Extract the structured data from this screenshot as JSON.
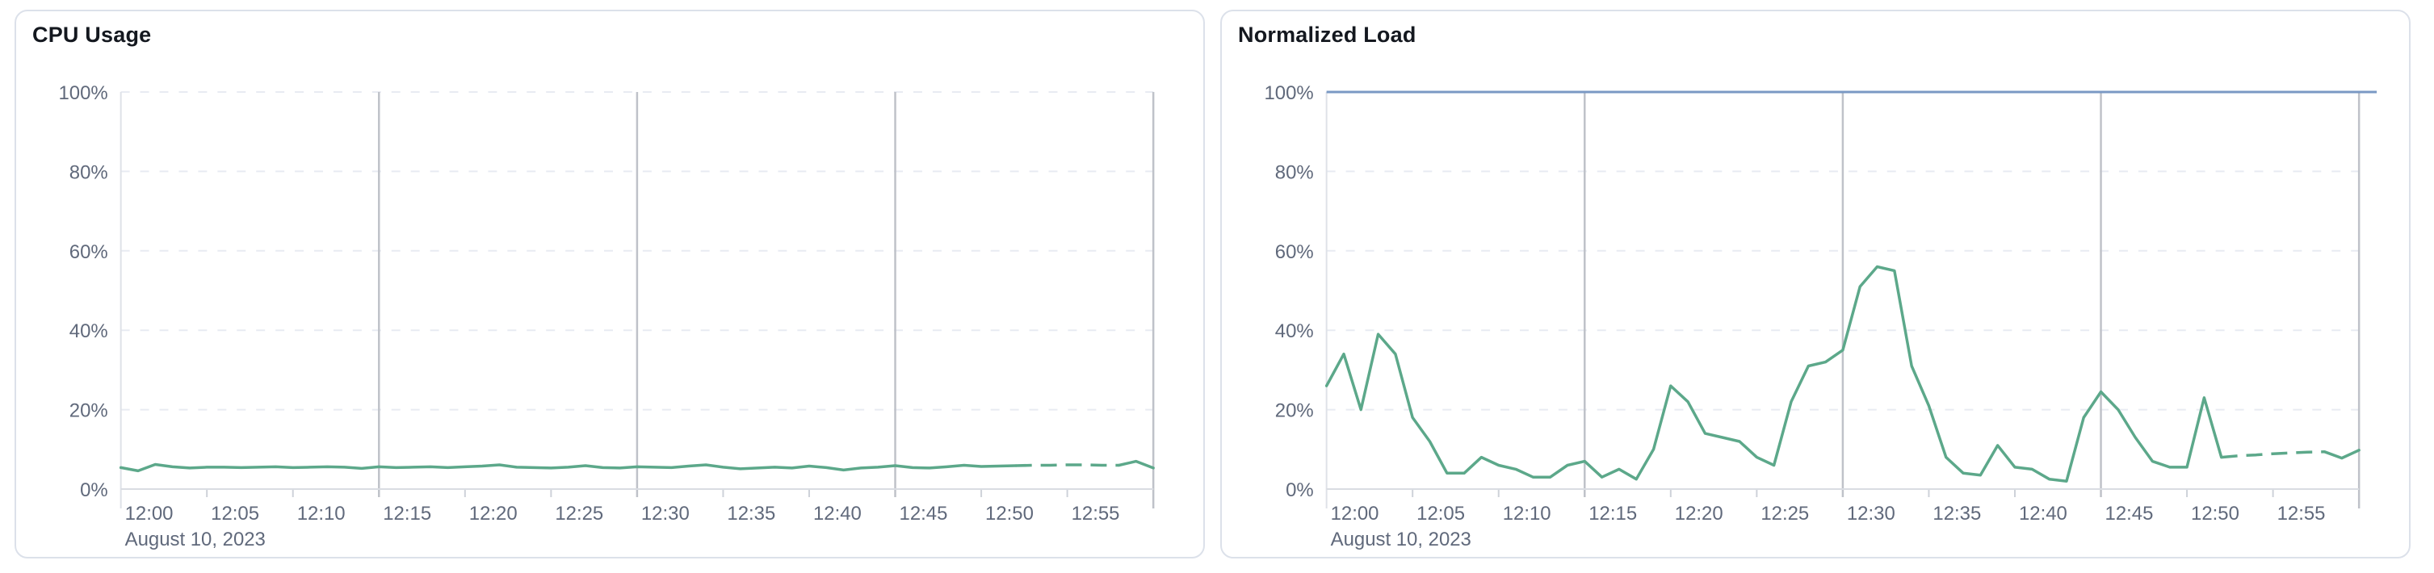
{
  "page": {
    "background": "#ffffff",
    "card_border": "#dce1ea",
    "card_background": "#ffffff"
  },
  "cards": [
    {
      "title": "CPU Usage"
    },
    {
      "title": "Normalized Load"
    }
  ],
  "chart_data": [
    {
      "type": "line",
      "title": "CPU Usage",
      "xlabel": "",
      "ylabel": "",
      "date_label": "August 10, 2023",
      "x_ticks": [
        "12:00",
        "12:05",
        "12:10",
        "12:15",
        "12:20",
        "12:25",
        "12:30",
        "12:35",
        "12:40",
        "12:45",
        "12:50",
        "12:55"
      ],
      "x_tick_step_min": 5,
      "x_range_min": [
        0,
        60
      ],
      "y_ticks": [
        "0%",
        "20%",
        "40%",
        "60%",
        "80%",
        "100%"
      ],
      "ylim": [
        0,
        100
      ],
      "grid": {
        "horizontal": "dashed",
        "vertical_dark_every_min": 15,
        "legend": "none"
      },
      "colors": {
        "line": "#5CA88A",
        "dark_grid": "#bfc2c9",
        "light_grid": "#e8ebf2",
        "axis": "#d9dce2",
        "tick": "#ced2d9",
        "label": "#60697b"
      },
      "series": [
        {
          "name": "cpu_usage_pct",
          "color": "#5CA88A",
          "dash_from_min": 52,
          "dash_to_min": 58,
          "points_min_pct": [
            [
              0,
              5.4
            ],
            [
              1,
              4.6
            ],
            [
              2,
              6.2
            ],
            [
              3,
              5.6
            ],
            [
              4,
              5.3
            ],
            [
              5,
              5.5
            ],
            [
              6,
              5.5
            ],
            [
              7,
              5.4
            ],
            [
              8,
              5.5
            ],
            [
              9,
              5.6
            ],
            [
              10,
              5.4
            ],
            [
              11,
              5.5
            ],
            [
              12,
              5.6
            ],
            [
              13,
              5.5
            ],
            [
              14,
              5.2
            ],
            [
              15,
              5.6
            ],
            [
              16,
              5.4
            ],
            [
              17,
              5.5
            ],
            [
              18,
              5.6
            ],
            [
              19,
              5.4
            ],
            [
              20,
              5.6
            ],
            [
              21,
              5.8
            ],
            [
              22,
              6.1
            ],
            [
              23,
              5.5
            ],
            [
              24,
              5.4
            ],
            [
              25,
              5.3
            ],
            [
              26,
              5.5
            ],
            [
              27,
              5.9
            ],
            [
              28,
              5.4
            ],
            [
              29,
              5.3
            ],
            [
              30,
              5.6
            ],
            [
              31,
              5.5
            ],
            [
              32,
              5.4
            ],
            [
              33,
              5.8
            ],
            [
              34,
              6.1
            ],
            [
              35,
              5.5
            ],
            [
              36,
              5.1
            ],
            [
              37,
              5.3
            ],
            [
              38,
              5.5
            ],
            [
              39,
              5.3
            ],
            [
              40,
              5.8
            ],
            [
              41,
              5.4
            ],
            [
              42,
              4.8
            ],
            [
              43,
              5.3
            ],
            [
              44,
              5.5
            ],
            [
              45,
              5.9
            ],
            [
              46,
              5.4
            ],
            [
              47,
              5.3
            ],
            [
              48,
              5.6
            ],
            [
              49,
              6.0
            ],
            [
              50,
              5.7
            ],
            [
              51,
              5.8
            ],
            [
              52,
              5.9
            ],
            [
              53,
              6.0
            ],
            [
              54,
              6.0
            ],
            [
              55,
              6.1
            ],
            [
              56,
              6.1
            ],
            [
              57,
              6.0
            ],
            [
              58,
              6.0
            ],
            [
              59,
              7.0
            ],
            [
              60,
              5.3
            ]
          ]
        }
      ]
    },
    {
      "type": "line",
      "title": "Normalized Load",
      "xlabel": "",
      "ylabel": "",
      "date_label": "August 10, 2023",
      "x_ticks": [
        "12:00",
        "12:05",
        "12:10",
        "12:15",
        "12:20",
        "12:25",
        "12:30",
        "12:35",
        "12:40",
        "12:45",
        "12:50",
        "12:55"
      ],
      "x_tick_step_min": 5,
      "x_range_min": [
        0,
        60
      ],
      "y_ticks": [
        "0%",
        "20%",
        "40%",
        "60%",
        "80%",
        "100%"
      ],
      "ylim": [
        0,
        100
      ],
      "grid": {
        "horizontal": "dashed",
        "vertical_dark_every_min": 15,
        "legend": "none"
      },
      "colors": {
        "line": "#5CA88A",
        "limit_line": "#7A99C4",
        "dark_grid": "#bfc2c9",
        "light_grid": "#e8ebf2",
        "axis": "#d9dce2",
        "tick": "#ced2d9",
        "label": "#60697b"
      },
      "series": [
        {
          "name": "normalized_load_pct",
          "color": "#5CA88A",
          "dash_from_min": 52,
          "dash_to_min": 58,
          "points_min_pct": [
            [
              0,
              26
            ],
            [
              1,
              34
            ],
            [
              2,
              20
            ],
            [
              3,
              39
            ],
            [
              4,
              34
            ],
            [
              5,
              18
            ],
            [
              6,
              12
            ],
            [
              7,
              4
            ],
            [
              8,
              4
            ],
            [
              9,
              8
            ],
            [
              10,
              6
            ],
            [
              11,
              5
            ],
            [
              12,
              3
            ],
            [
              13,
              3
            ],
            [
              14,
              6
            ],
            [
              15,
              7
            ],
            [
              16,
              3
            ],
            [
              17,
              5
            ],
            [
              18,
              2.5
            ],
            [
              19,
              10
            ],
            [
              20,
              26
            ],
            [
              21,
              22
            ],
            [
              22,
              14
            ],
            [
              23,
              13
            ],
            [
              24,
              12
            ],
            [
              25,
              8
            ],
            [
              26,
              6
            ],
            [
              27,
              22
            ],
            [
              28,
              31
            ],
            [
              29,
              32
            ],
            [
              30,
              35
            ],
            [
              31,
              51
            ],
            [
              32,
              56
            ],
            [
              33,
              55
            ],
            [
              34,
              31
            ],
            [
              35,
              21
            ],
            [
              36,
              8
            ],
            [
              37,
              4
            ],
            [
              38,
              3.5
            ],
            [
              39,
              11
            ],
            [
              40,
              5.5
            ],
            [
              41,
              5
            ],
            [
              42,
              2.5
            ],
            [
              43,
              2
            ],
            [
              44,
              18
            ],
            [
              45,
              24.5
            ],
            [
              46,
              20
            ],
            [
              47,
              13
            ],
            [
              48,
              7
            ],
            [
              49,
              5.5
            ],
            [
              50,
              5.5
            ],
            [
              51,
              23
            ],
            [
              52,
              8
            ],
            [
              53,
              8.4
            ],
            [
              54,
              8.6
            ],
            [
              55,
              8.9
            ],
            [
              56,
              9.1
            ],
            [
              57,
              9.3
            ],
            [
              58,
              9.4
            ],
            [
              59,
              7.8
            ],
            [
              60,
              9.8
            ]
          ]
        },
        {
          "name": "limit_100_pct",
          "role": "limit",
          "color": "#7A99C4",
          "points_min_pct": [
            [
              0,
              100
            ],
            [
              60,
              100
            ]
          ]
        }
      ]
    }
  ]
}
